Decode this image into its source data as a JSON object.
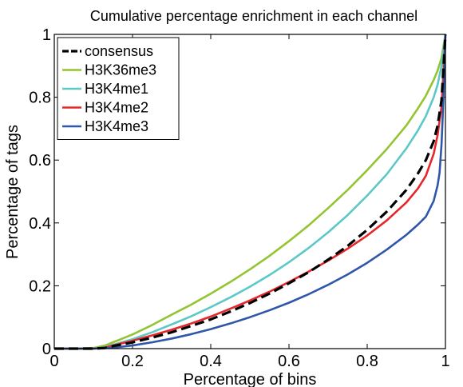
{
  "chart_data": {
    "type": "line",
    "title": "Cumulative percentage enrichment in each channel",
    "xlabel": "Percentage of bins",
    "ylabel": "Percentage of tags",
    "xlim": [
      0,
      1
    ],
    "ylim": [
      0,
      1
    ],
    "xticks": [
      "0",
      "0.2",
      "0.4",
      "0.6",
      "0.8",
      "1"
    ],
    "yticks": [
      "0",
      "0.2",
      "0.4",
      "0.6",
      "0.8",
      "1"
    ],
    "grid": false,
    "legend_position": "top-left",
    "series": [
      {
        "name": "consensus",
        "color": "#000000",
        "dashed": true,
        "x": [
          0,
          0.05,
          0.1,
          0.13,
          0.15,
          0.2,
          0.25,
          0.3,
          0.35,
          0.4,
          0.45,
          0.5,
          0.55,
          0.6,
          0.65,
          0.7,
          0.75,
          0.8,
          0.85,
          0.9,
          0.93,
          0.95,
          0.97,
          0.98,
          0.99,
          1.0
        ],
        "y": [
          0,
          0,
          0,
          0.002,
          0.008,
          0.02,
          0.035,
          0.052,
          0.072,
          0.093,
          0.118,
          0.145,
          0.175,
          0.208,
          0.243,
          0.283,
          0.327,
          0.378,
          0.436,
          0.505,
          0.558,
          0.6,
          0.66,
          0.71,
          0.79,
          1.0
        ]
      },
      {
        "name": "H3K36me3",
        "color": "#94c432",
        "dashed": false,
        "x": [
          0,
          0.05,
          0.1,
          0.13,
          0.15,
          0.2,
          0.25,
          0.3,
          0.35,
          0.4,
          0.45,
          0.5,
          0.55,
          0.6,
          0.65,
          0.7,
          0.75,
          0.8,
          0.85,
          0.9,
          0.93,
          0.95,
          0.97,
          0.98,
          0.99,
          1.0
        ],
        "y": [
          0,
          0,
          0.002,
          0.01,
          0.02,
          0.045,
          0.075,
          0.108,
          0.14,
          0.175,
          0.212,
          0.252,
          0.295,
          0.342,
          0.392,
          0.447,
          0.505,
          0.568,
          0.635,
          0.71,
          0.765,
          0.805,
          0.855,
          0.885,
          0.925,
          1.0
        ]
      },
      {
        "name": "H3K4me1",
        "color": "#5cc8c8",
        "dashed": false,
        "x": [
          0,
          0.05,
          0.1,
          0.13,
          0.15,
          0.2,
          0.25,
          0.3,
          0.35,
          0.4,
          0.45,
          0.5,
          0.55,
          0.6,
          0.65,
          0.7,
          0.75,
          0.8,
          0.85,
          0.9,
          0.93,
          0.95,
          0.97,
          0.98,
          0.99,
          1.0
        ],
        "y": [
          0,
          0,
          0,
          0.005,
          0.012,
          0.03,
          0.052,
          0.077,
          0.103,
          0.132,
          0.163,
          0.197,
          0.234,
          0.275,
          0.32,
          0.37,
          0.425,
          0.487,
          0.555,
          0.637,
          0.695,
          0.74,
          0.8,
          0.84,
          0.9,
          1.0
        ]
      },
      {
        "name": "H3K4me2",
        "color": "#e8262a",
        "dashed": false,
        "x": [
          0,
          0.05,
          0.1,
          0.13,
          0.15,
          0.2,
          0.25,
          0.3,
          0.35,
          0.4,
          0.45,
          0.5,
          0.55,
          0.6,
          0.65,
          0.7,
          0.75,
          0.8,
          0.85,
          0.9,
          0.93,
          0.95,
          0.97,
          0.98,
          0.99,
          1.0
        ],
        "y": [
          0,
          0,
          0,
          0.003,
          0.01,
          0.025,
          0.042,
          0.06,
          0.08,
          0.102,
          0.127,
          0.153,
          0.181,
          0.212,
          0.245,
          0.28,
          0.318,
          0.36,
          0.408,
          0.465,
          0.51,
          0.55,
          0.62,
          0.68,
          0.77,
          1.0
        ]
      },
      {
        "name": "H3K4me3",
        "color": "#2f56a8",
        "dashed": false,
        "x": [
          0,
          0.05,
          0.1,
          0.15,
          0.2,
          0.25,
          0.3,
          0.35,
          0.4,
          0.45,
          0.5,
          0.55,
          0.6,
          0.65,
          0.7,
          0.75,
          0.8,
          0.85,
          0.9,
          0.93,
          0.95,
          0.97,
          0.98,
          0.985,
          0.99,
          0.995,
          1.0
        ],
        "y": [
          0,
          0,
          0,
          0.003,
          0.01,
          0.02,
          0.032,
          0.046,
          0.062,
          0.08,
          0.1,
          0.122,
          0.146,
          0.173,
          0.203,
          0.236,
          0.273,
          0.315,
          0.362,
          0.395,
          0.42,
          0.47,
          0.52,
          0.56,
          0.65,
          0.8,
          1.0
        ]
      }
    ]
  }
}
